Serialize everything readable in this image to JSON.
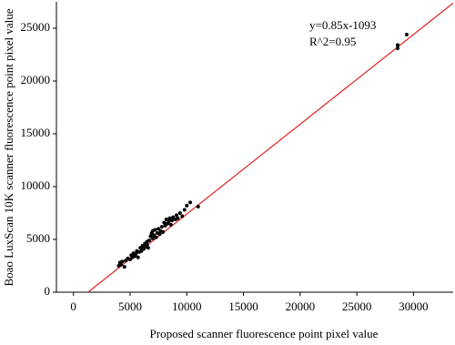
{
  "chart_data": {
    "type": "scatter",
    "x_label": "Proposed scanner fluorescence point pixel value",
    "y_label": "Boao LuxScan 10K scanner fluorescence point pixel value",
    "annotations": [
      "y=0.85x-1093",
      "R^2=0.95"
    ],
    "fit": {
      "slope": 0.85,
      "intercept": -1093,
      "color": "#e02020"
    },
    "color": "#000000",
    "x": [
      4000,
      4100,
      4200,
      4300,
      4500,
      4600,
      4800,
      5000,
      5100,
      5200,
      5300,
      5400,
      5500,
      5600,
      5700,
      5800,
      5900,
      6000,
      6100,
      6200,
      6300,
      6400,
      6500,
      6500,
      6600,
      6700,
      6800,
      6900,
      7000,
      7000,
      7100,
      7200,
      7300,
      7400,
      7500,
      7600,
      7700,
      7800,
      7900,
      8000,
      8100,
      8200,
      8300,
      8400,
      8500,
      8600,
      8700,
      8800,
      9000,
      9100,
      9200,
      9400,
      9600,
      9800,
      10000,
      10300,
      11000,
      28600,
      28600,
      29400
    ],
    "y": [
      2500,
      2800,
      2600,
      2900,
      2400,
      3000,
      3200,
      3100,
      3500,
      3300,
      3700,
      3400,
      3600,
      3900,
      3300,
      3800,
      4200,
      3900,
      4400,
      4100,
      4600,
      4300,
      4800,
      4500,
      4200,
      4900,
      5300,
      5600,
      5800,
      5100,
      5400,
      5900,
      5200,
      5600,
      6000,
      5500,
      5800,
      6200,
      5700,
      6600,
      6300,
      6900,
      6500,
      6700,
      7000,
      6400,
      6800,
      7100,
      6900,
      7300,
      7000,
      7500,
      7200,
      7800,
      8200,
      8500,
      8100,
      23100,
      23400,
      24400
    ],
    "xlim": [
      -1500,
      33500
    ],
    "ylim": [
      0,
      27500
    ],
    "xticks": [
      0,
      5000,
      10000,
      15000,
      20000,
      25000,
      30000
    ],
    "yticks": [
      0,
      5000,
      10000,
      15000,
      20000,
      25000
    ]
  }
}
